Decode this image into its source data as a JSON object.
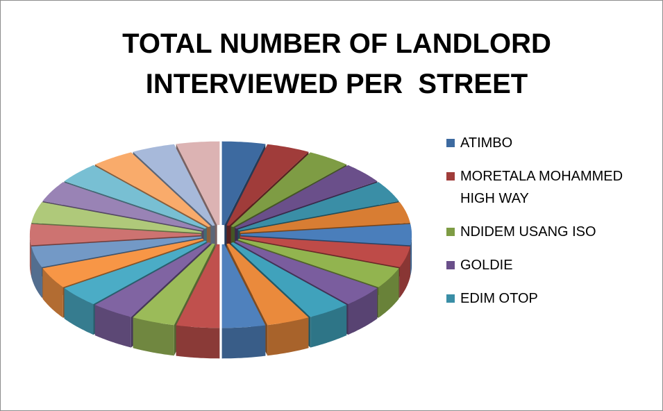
{
  "chart_data": {
    "type": "pie3d",
    "title": "TOTAL NUMBER OF LANDLORD INTERVIEWED PER  STREET",
    "categories": [
      "ATIMBO",
      "MORETALA MOHAMMED HIGH WAY",
      "NDIDEM USANG ISO",
      "GOLDIE",
      "EDIM OTOP",
      null,
      null,
      null,
      null,
      null,
      null,
      null,
      null,
      null,
      null,
      null,
      null,
      null,
      null,
      null,
      null,
      null,
      null,
      null,
      null,
      null
    ],
    "values": [
      1,
      1,
      1,
      1,
      1,
      1,
      1,
      1,
      1,
      1,
      1,
      1,
      1,
      1,
      1,
      1,
      1,
      1,
      1,
      1,
      1,
      1,
      1,
      1,
      1,
      1
    ],
    "colors": [
      "#3d6aa0",
      "#a03c3a",
      "#7e9c44",
      "#6a4f8a",
      "#3a8ea6",
      "#d87d33",
      "#4a7ebb",
      "#be4b48",
      "#92b44f",
      "#7a5d9e",
      "#40a2bc",
      "#ea8a3c",
      "#4f81bd",
      "#c0504d",
      "#9bbb59",
      "#8064a2",
      "#4bacc6",
      "#f79646",
      "#7399c6",
      "#cd7371",
      "#afc97a",
      "#9983b5",
      "#78bfd3",
      "#f9ab6b",
      "#a7b9da",
      "#dcb3b3"
    ],
    "legend": "right"
  }
}
